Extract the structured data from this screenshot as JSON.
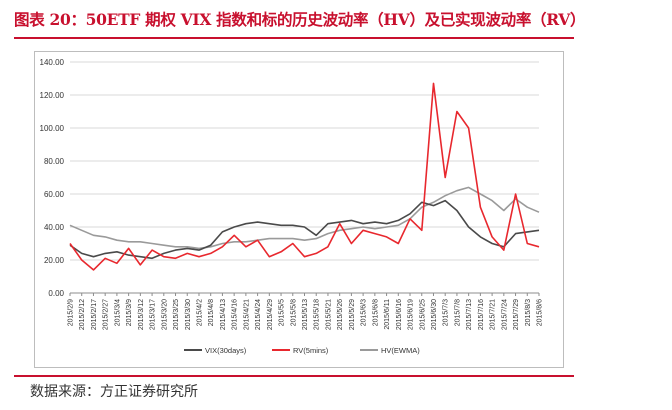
{
  "caption": "图表 20：50ETF 期权 VIX 指数和标的历史波动率（HV）及已实现波动率（RV）",
  "source": "数据来源：方正证券研究所",
  "colors": {
    "accent": "#c8102e",
    "vix": "#4a4a4a",
    "rv": "#e8282e",
    "hv": "#9a9a9a"
  },
  "chart_data": {
    "type": "line",
    "title": "",
    "xlabel": "",
    "ylabel": "",
    "ylim": [
      0,
      140
    ],
    "yticks": [
      "0.00",
      "20.00",
      "40.00",
      "60.00",
      "80.00",
      "100.00",
      "120.00",
      "140.00"
    ],
    "grid": true,
    "legend": "bottom",
    "x": [
      "2015/2/9",
      "2015/2/12",
      "2015/2/17",
      "2015/2/27",
      "2015/3/4",
      "2015/3/9",
      "2015/3/12",
      "2015/3/17",
      "2015/3/20",
      "2015/3/25",
      "2015/3/30",
      "2015/4/2",
      "2015/4/8",
      "2015/4/13",
      "2015/4/16",
      "2015/4/21",
      "2015/4/24",
      "2015/4/29",
      "2015/5/5",
      "2015/5/8",
      "2015/5/13",
      "2015/5/18",
      "2015/5/21",
      "2015/5/26",
      "2015/5/29",
      "2015/6/3",
      "2015/6/8",
      "2015/6/11",
      "2015/6/16",
      "2015/6/19",
      "2015/6/25",
      "2015/6/30",
      "2015/7/3",
      "2015/7/8",
      "2015/7/13",
      "2015/7/16",
      "2015/7/21",
      "2015/7/24",
      "2015/7/29",
      "2015/8/3",
      "2015/8/6"
    ],
    "series": [
      {
        "name": "VIX(30days)",
        "values": [
          29,
          24,
          22,
          24,
          25,
          23,
          22,
          21,
          24,
          26,
          27,
          26,
          29,
          37,
          40,
          42,
          43,
          42,
          41,
          41,
          40,
          35,
          42,
          43,
          44,
          42,
          43,
          42,
          44,
          48,
          55,
          53,
          56,
          50,
          40,
          34,
          30,
          28,
          36,
          37,
          38
        ]
      },
      {
        "name": "RV(5mins)",
        "values": [
          30,
          20,
          14,
          21,
          18,
          27,
          17,
          26,
          22,
          21,
          24,
          22,
          24,
          28,
          35,
          28,
          32,
          22,
          25,
          30,
          22,
          24,
          28,
          42,
          30,
          38,
          36,
          34,
          30,
          45,
          38,
          127,
          70,
          110,
          100,
          52,
          34,
          26,
          60,
          30,
          28
        ]
      },
      {
        "name": "HV(EWMA)",
        "values": [
          41,
          38,
          35,
          34,
          32,
          31,
          31,
          30,
          29,
          28,
          28,
          27,
          28,
          30,
          31,
          31,
          32,
          33,
          33,
          33,
          32,
          33,
          36,
          38,
          39,
          40,
          39,
          40,
          41,
          45,
          52,
          55,
          59,
          62,
          64,
          60,
          56,
          50,
          57,
          52,
          49
        ]
      }
    ]
  }
}
